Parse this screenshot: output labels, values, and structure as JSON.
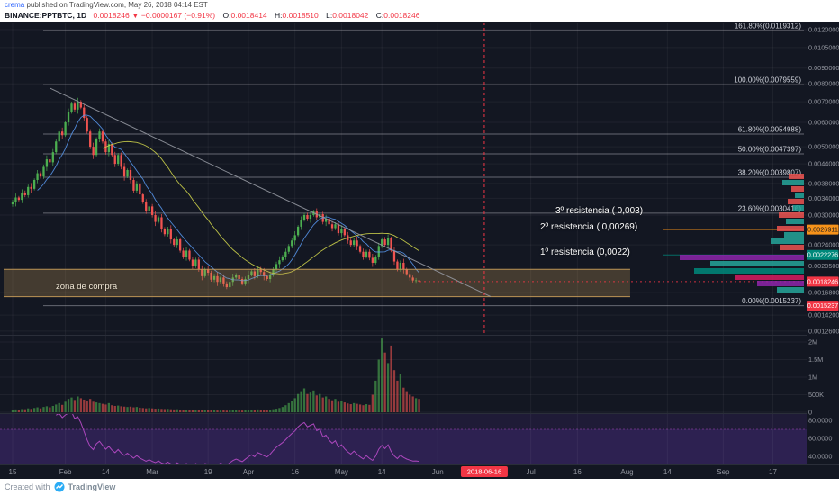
{
  "header": {
    "byline": {
      "author": "crema",
      "rest": " published on TradingView.com, May 26, 2018 04:14 EST"
    },
    "legend": {
      "symbol": "BINANCE:PPTBTC, 1D",
      "last": "0.0018246",
      "direction": "▼",
      "change": "−0.0000167 (−0.91%)",
      "o_label": "O:",
      "o": "0.0018414",
      "h_label": "H:",
      "h": "0.0018510",
      "l_label": "L:",
      "l": "0.0018042",
      "c_label": "C:",
      "c": "0.0018246"
    }
  },
  "footer": {
    "created_with": "Created with",
    "brand": "TradingView"
  },
  "annotations": {
    "resistance": [
      {
        "text": "3º resistencia ( 0,003)",
        "price": 0.003
      },
      {
        "text": "2º resistencia  ( 0,00269)",
        "price": 0.0026911
      },
      {
        "text": "1º resistencia (0,0022)",
        "price": 0.0022276
      }
    ],
    "buy_zone": {
      "text": "zona de compra",
      "price_top": 0.002,
      "price_bottom": 0.00163,
      "end_day": 199
    },
    "event_date": "2018-06-16",
    "event_day": 152
  },
  "axes": {
    "price_ticks": [
      "0.0120000",
      "0.0105000",
      "0.0090000",
      "0.0080000",
      "0.0070000",
      "0.0060000",
      "0.0050000",
      "0.0044000",
      "0.0038000",
      "0.0034000",
      "0.0030000",
      "0.0024000",
      "0.0020500",
      "0.0016800",
      "0.0014200",
      "0.0012600"
    ],
    "price_badges": [
      {
        "label": "0.0026911",
        "price": 0.0026911,
        "bg": "#f7931a",
        "fg": "#131722"
      },
      {
        "label": "0.0022276",
        "price": 0.0022276,
        "bg": "#00897b",
        "fg": "#ffffff"
      },
      {
        "label": "0.0018246",
        "price": 0.0018246,
        "bg": "#f23645",
        "fg": "#ffffff"
      },
      {
        "label": "0.0015237",
        "price": 0.0015237,
        "bg": "#f23645",
        "fg": "#ffffff"
      }
    ],
    "volume_ticks": [
      {
        "label": "2M",
        "v": 2000
      },
      {
        "label": "1.5M",
        "v": 1500
      },
      {
        "label": "1M",
        "v": 1000
      },
      {
        "label": "500K",
        "v": 500
      },
      {
        "label": "0",
        "v": 0
      }
    ],
    "rsi_ticks": [
      {
        "label": "80.0000",
        "v": 80
      },
      {
        "label": "60.0000",
        "v": 60
      },
      {
        "label": "40.0000",
        "v": 40
      }
    ],
    "time_labels": [
      {
        "t": "15",
        "d": 0
      },
      {
        "t": "Feb",
        "d": 17
      },
      {
        "t": "14",
        "d": 30
      },
      {
        "t": "Mar",
        "d": 45
      },
      {
        "t": "19",
        "d": 63
      },
      {
        "t": "Apr",
        "d": 76
      },
      {
        "t": "16",
        "d": 91
      },
      {
        "t": "May",
        "d": 106
      },
      {
        "t": "14",
        "d": 119
      },
      {
        "t": "Jun",
        "d": 137
      },
      {
        "t": "Jul",
        "d": 167
      },
      {
        "t": "16",
        "d": 182
      },
      {
        "t": "Aug",
        "d": 198
      },
      {
        "t": "14",
        "d": 211
      },
      {
        "t": "Sep",
        "d": 229
      },
      {
        "t": "17",
        "d": 245
      }
    ]
  },
  "chart_data": {
    "type": "candlestick",
    "symbol": "BINANCE:PPTBTC",
    "interval": "1D",
    "scale": "log",
    "x_range": "Jan 15 2018 – May 26 2018 (projection to Sep 2018)",
    "ohlc_last": {
      "open": 0.0018414,
      "high": 0.001851,
      "low": 0.0018042,
      "close": 0.0018246
    },
    "closes": [
      0.0033,
      0.00342,
      0.00336,
      0.00355,
      0.00348,
      0.0037,
      0.00365,
      0.0039,
      0.0041,
      0.004,
      0.0043,
      0.00455,
      0.00445,
      0.0048,
      0.0052,
      0.0056,
      0.00545,
      0.006,
      0.0065,
      0.0069,
      0.0066,
      0.007,
      0.0067,
      0.0062,
      0.0056,
      0.005,
      0.0047,
      0.0053,
      0.0056,
      0.0052,
      0.0048,
      0.0051,
      0.0047,
      0.0044,
      0.0047,
      0.0043,
      0.004,
      0.0042,
      0.0039,
      0.0036,
      0.0038,
      0.0035,
      0.0033,
      0.0031,
      0.0032,
      0.003,
      0.00285,
      0.00295,
      0.0027,
      0.0026,
      0.0027,
      0.0025,
      0.0024,
      0.0025,
      0.0023,
      0.0022,
      0.0023,
      0.00215,
      0.00205,
      0.00215,
      0.002,
      0.0019,
      0.002,
      0.00195,
      0.00185,
      0.0019,
      0.00182,
      0.00188,
      0.0018,
      0.00175,
      0.00182,
      0.00188,
      0.00192,
      0.00186,
      0.0018,
      0.00186,
      0.00192,
      0.00197,
      0.0019,
      0.002,
      0.00196,
      0.0019,
      0.00186,
      0.00192,
      0.002,
      0.00208,
      0.00214,
      0.0022,
      0.00228,
      0.00238,
      0.00248,
      0.00258,
      0.00275,
      0.0029,
      0.003,
      0.00292,
      0.003,
      0.00308,
      0.00295,
      0.00302,
      0.00285,
      0.00292,
      0.0028,
      0.00272,
      0.0028,
      0.00262,
      0.0027,
      0.00258,
      0.00248,
      0.0024,
      0.00248,
      0.00238,
      0.00228,
      0.0022,
      0.00228,
      0.00218,
      0.0021,
      0.0022,
      0.00238,
      0.0025,
      0.0024,
      0.00252,
      0.0023,
      0.00212,
      0.002,
      0.0021,
      0.002,
      0.00193,
      0.00188,
      0.00184,
      0.0018414,
      0.0018246
    ],
    "volumes_k": [
      60,
      80,
      70,
      90,
      85,
      110,
      95,
      120,
      140,
      110,
      150,
      170,
      140,
      180,
      220,
      260,
      210,
      300,
      380,
      420,
      350,
      450,
      400,
      360,
      320,
      380,
      300,
      280,
      260,
      240,
      220,
      260,
      200,
      180,
      190,
      170,
      160,
      150,
      160,
      140,
      150,
      130,
      120,
      110,
      120,
      110,
      100,
      105,
      95,
      90,
      95,
      85,
      80,
      85,
      75,
      70,
      75,
      65,
      60,
      65,
      60,
      55,
      60,
      58,
      52,
      55,
      50,
      48,
      52,
      46,
      50,
      55,
      60,
      52,
      48,
      55,
      70,
      75,
      65,
      80,
      72,
      65,
      60,
      70,
      85,
      100,
      120,
      150,
      200,
      260,
      330,
      400,
      520,
      600,
      680,
      520,
      560,
      620,
      480,
      520,
      420,
      450,
      380,
      340,
      380,
      300,
      320,
      280,
      250,
      230,
      260,
      240,
      220,
      200,
      230,
      210,
      500,
      900,
      1500,
      2100,
      1700,
      1400,
      1900,
      1200,
      900,
      1100,
      700,
      600,
      500,
      450,
      400,
      380
    ],
    "fib_levels": [
      {
        "label": "161.80%(0.0119312)",
        "price": 0.0119312
      },
      {
        "label": "100.00%(0.0079559)",
        "price": 0.0079559
      },
      {
        "label": "61.80%(0.0054988)",
        "price": 0.0054988
      },
      {
        "label": "50.00%(0.0047397)",
        "price": 0.0047397
      },
      {
        "label": "38.20%(0.0039807)",
        "price": 0.0039807
      },
      {
        "label": "23.60%(0.0030416)",
        "price": 0.0030416
      },
      {
        "label": "0.00%(0.0015237)",
        "price": 0.0015237
      }
    ],
    "trendline": {
      "from_day": 12,
      "from_price": 0.00775,
      "to_day": 154,
      "to_price": 0.001632
    },
    "volume_profile": [
      {
        "y": 193,
        "len": 16,
        "color": "#ef5350"
      },
      {
        "y": 200,
        "len": 24,
        "color": "#26a69a"
      },
      {
        "y": 207,
        "len": 14,
        "color": "#ef5350"
      },
      {
        "y": 214,
        "len": 10,
        "color": "#26a69a"
      },
      {
        "y": 221,
        "len": 18,
        "color": "#ef5350"
      },
      {
        "y": 228,
        "len": 12,
        "color": "#26a69a"
      },
      {
        "y": 236,
        "len": 28,
        "color": "#ef5350"
      },
      {
        "y": 243,
        "len": 20,
        "color": "#26a69a"
      },
      {
        "y": 251,
        "len": 30,
        "color": "#ef5350"
      },
      {
        "y": 258,
        "len": 22,
        "color": "#26a69a"
      },
      {
        "y": 265,
        "len": 36,
        "color": "#26a69a"
      },
      {
        "y": 272,
        "len": 26,
        "color": "#ef5350"
      },
      {
        "y": 283,
        "len": 138,
        "color": "#8e24aa"
      },
      {
        "y": 290,
        "len": 104,
        "color": "#26a69a"
      },
      {
        "y": 298,
        "len": 122,
        "color": "#00897b"
      },
      {
        "y": 305,
        "len": 76,
        "color": "#d81b60"
      },
      {
        "y": 312,
        "len": 52,
        "color": "#8e24aa"
      },
      {
        "y": 319,
        "len": 30,
        "color": "#26a69a"
      }
    ]
  },
  "colors": {
    "background": "#131722",
    "up": "#4caf50",
    "down": "#f05350",
    "accent_red": "#f23645",
    "ma_fast": "#5b9cf6",
    "ma_slow": "#cdd24a",
    "rsi": "#ab47bc",
    "rsi_fill": "rgba(103,58,183,0.14)",
    "rsi_band": "rgba(103,58,183,0.20)",
    "fib": "#b8b8c0",
    "zone_fill": "rgba(196,153,87,0.28)",
    "zone_border": "rgba(196,153,87,0.95)",
    "grid": "rgba(255,255,255,0.05)",
    "separator": "#2a2e39",
    "axis_text": "#9598a1",
    "link_blue": "#2962ff"
  }
}
